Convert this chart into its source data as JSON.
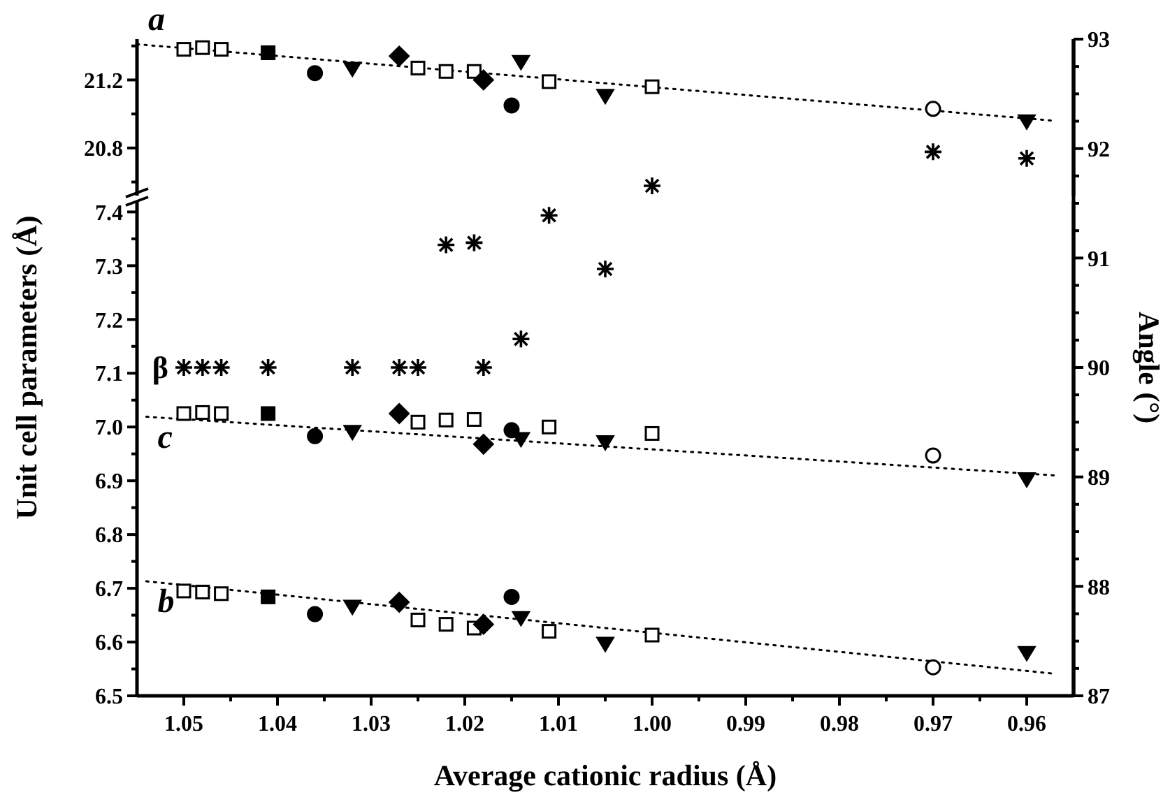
{
  "chart_data": [
    {
      "type": "scatter",
      "xlim": [
        1.055,
        0.955
      ],
      "tick_labels": "y",
      "ylim": [
        20.52,
        21.44
      ],
      "yticks": [
        {
          "value": 20.6,
          "label": null
        },
        20.8,
        {
          "value": 21.0,
          "label": null
        },
        21.2,
        {
          "value": 21.4,
          "label": null
        }
      ],
      "series": [
        {
          "type": "line",
          "name": "a",
          "color": "#000000",
          "line_style": "dotted",
          "x": [
            1.055,
            0.957
          ],
          "values": [
            21.41,
            20.96
          ]
        },
        {
          "color": "#ffffff",
          "marker": "square",
          "x": [
            1.05,
            1.048,
            1.046,
            1.025,
            1.022,
            1.019,
            1.011,
            1.0
          ],
          "values": [
            21.38,
            21.39,
            21.38,
            21.27,
            21.25,
            21.25,
            21.19,
            21.16
          ]
        },
        {
          "color": "#000000",
          "marker": "square",
          "x": [
            1.041
          ],
          "values": [
            21.36
          ]
        },
        {
          "color": "#000000",
          "marker": "circle",
          "x": [
            1.036,
            1.015
          ],
          "values": [
            21.24,
            21.05
          ]
        },
        {
          "color": "#000000",
          "marker": "triangle",
          "x": [
            1.032,
            1.014,
            1.005,
            0.96
          ],
          "values": [
            21.27,
            21.31,
            21.11,
            20.96
          ]
        },
        {
          "color": "#000000",
          "marker": "diamond",
          "x": [
            1.027,
            1.018
          ],
          "values": [
            21.34,
            21.2
          ]
        },
        {
          "color": "#ffffff",
          "marker": "circle",
          "x": [
            0.97
          ],
          "values": [
            21.03
          ]
        }
      ]
    },
    {
      "type": "scatter",
      "xlabel": "Average cationic radius (Å)",
      "ylabel": "Unit cell parameters (Å)",
      "xlim": [
        1.055,
        0.955
      ],
      "xticks": [
        1.05,
        {
          "value": 1.045,
          "label": null
        },
        1.04,
        {
          "value": 1.035,
          "label": null
        },
        1.03,
        {
          "value": 1.025,
          "label": null
        },
        1.02,
        {
          "value": 1.015,
          "label": null
        },
        1.01,
        {
          "value": 1.005,
          "label": null
        },
        {
          "value": 1,
          "label": "1.00"
        },
        {
          "value": 0.995,
          "label": null
        },
        0.99,
        {
          "value": 0.985,
          "label": null
        },
        0.98,
        {
          "value": 0.975,
          "label": null
        },
        0.97,
        {
          "value": 0.965,
          "label": null
        },
        0.96
      ],
      "ylim": [
        6.5,
        7.42
      ],
      "yticks": [
        6.5,
        {
          "value": 6.55,
          "label": null
        },
        6.6,
        {
          "value": 6.65,
          "label": null
        },
        6.7,
        {
          "value": 6.75,
          "label": null
        },
        6.8,
        {
          "value": 6.85,
          "label": null
        },
        6.9,
        {
          "value": 6.95,
          "label": null
        },
        {
          "value": 7,
          "label": "7.0"
        },
        {
          "value": 7.05,
          "label": null
        },
        7.1,
        {
          "value": 7.15,
          "label": null
        },
        7.2,
        {
          "value": 7.25,
          "label": null
        },
        7.3,
        {
          "value": 7.35,
          "label": null
        },
        7.4
      ],
      "series": [
        {
          "type": "line",
          "name": "c",
          "color": "#000000",
          "line_style": "dotted",
          "x": [
            1.054,
            0.957
          ],
          "values": [
            7.019,
            6.91
          ]
        },
        {
          "type": "line",
          "name": "b",
          "color": "#000000",
          "line_style": "dotted",
          "x": [
            1.054,
            0.957
          ],
          "values": [
            6.713,
            6.541
          ]
        },
        {
          "color": "#ffffff",
          "marker": "square",
          "x": [
            1.05,
            1.048,
            1.046,
            1.025,
            1.022,
            1.019,
            1.011,
            1.0
          ],
          "values": [
            7.025,
            7.027,
            7.025,
            7.009,
            7.013,
            7.014,
            7.0,
            6.988
          ]
        },
        {
          "color": "#000000",
          "marker": "square",
          "x": [
            1.041
          ],
          "values": [
            7.025
          ]
        },
        {
          "color": "#000000",
          "marker": "circle",
          "x": [
            1.036,
            1.015
          ],
          "values": [
            6.983,
            6.994
          ]
        },
        {
          "color": "#000000",
          "marker": "triangle",
          "x": [
            1.032,
            1.014,
            1.005,
            0.96
          ],
          "values": [
            6.992,
            6.979,
            6.973,
            6.904
          ]
        },
        {
          "color": "#000000",
          "marker": "diamond",
          "x": [
            1.027,
            1.018
          ],
          "values": [
            7.025,
            6.968
          ]
        },
        {
          "color": "#ffffff",
          "marker": "circle",
          "x": [
            0.97
          ],
          "values": [
            6.947
          ]
        },
        {
          "color": "#ffffff",
          "marker": "square",
          "x": [
            1.05,
            1.048,
            1.046,
            1.025,
            1.022,
            1.019,
            1.011,
            1.0
          ],
          "values": [
            6.695,
            6.693,
            6.69,
            6.641,
            6.633,
            6.626,
            6.62,
            6.613
          ]
        },
        {
          "color": "#000000",
          "marker": "square",
          "x": [
            1.041
          ],
          "values": [
            6.684
          ]
        },
        {
          "color": "#000000",
          "marker": "circle",
          "x": [
            1.036,
            1.015
          ],
          "values": [
            6.652,
            6.684
          ]
        },
        {
          "color": "#000000",
          "marker": "triangle",
          "x": [
            1.032,
            1.014,
            1.005,
            0.96
          ],
          "values": [
            6.667,
            6.646,
            6.598,
            6.581
          ]
        },
        {
          "color": "#000000",
          "marker": "diamond",
          "x": [
            1.027,
            1.018
          ],
          "values": [
            6.674,
            6.633
          ]
        },
        {
          "color": "#ffffff",
          "marker": "circle",
          "x": [
            0.97
          ],
          "values": [
            6.553
          ]
        }
      ]
    },
    {
      "type": "scatter",
      "y2label": "Angle (°)",
      "xlim": [
        1.055,
        0.955
      ],
      "tick_labels": "y",
      "y2lim": [
        87,
        93
      ],
      "y2ticks": [
        87,
        {
          "value": 87.25,
          "label": null
        },
        {
          "value": 87.5,
          "label": null
        },
        {
          "value": 87.75,
          "label": null
        },
        88,
        {
          "value": 88.25,
          "label": null
        },
        {
          "value": 88.5,
          "label": null
        },
        {
          "value": 88.75,
          "label": null
        },
        89,
        {
          "value": 89.25,
          "label": null
        },
        {
          "value": 89.5,
          "label": null
        },
        {
          "value": 89.75,
          "label": null
        },
        90,
        {
          "value": 90.25,
          "label": null
        },
        {
          "value": 90.5,
          "label": null
        },
        {
          "value": 90.75,
          "label": null
        },
        91,
        {
          "value": 91.25,
          "label": null
        },
        {
          "value": 91.5,
          "label": null
        },
        {
          "value": 91.75,
          "label": null
        },
        92,
        {
          "value": 92.25,
          "label": null
        },
        {
          "value": 92.5,
          "label": null
        },
        {
          "value": 92.75,
          "label": null
        },
        93
      ],
      "series": [
        {
          "name": "β",
          "axis": "y2",
          "color": "#000000",
          "marker": "cross",
          "x": [
            1.05,
            1.048,
            1.046,
            1.041,
            1.032,
            1.027,
            1.025,
            1.018,
            1.014,
            1.005,
            1.022,
            1.019,
            1.011,
            1.0,
            0.97,
            0.96
          ],
          "values": [
            90.0,
            90.0,
            90.0,
            90.0,
            90.0,
            90.0,
            90.0,
            90.0,
            90.26,
            90.9,
            91.12,
            91.14,
            91.39,
            91.66,
            91.97,
            91.91
          ]
        }
      ]
    }
  ]
}
